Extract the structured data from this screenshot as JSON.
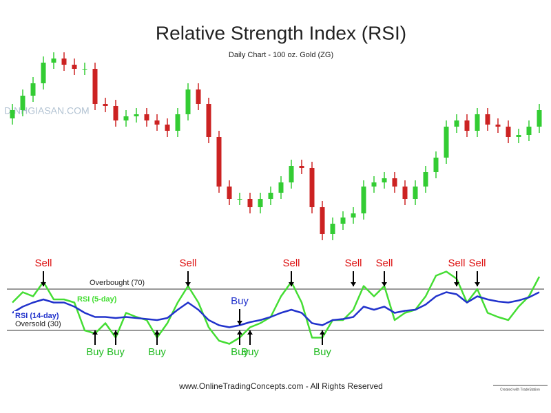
{
  "chart_data": [
    {
      "type": "candlestick",
      "title": "Relative Strength Index (RSI)",
      "subtitle": "Daily Chart - 100 oz. Gold (ZG)",
      "watermark": "DINHGIASAN.COM",
      "up_color": "#33cc33",
      "down_color": "#cc2222",
      "ylim": [
        0,
        105
      ],
      "open": [
        66,
        70,
        77,
        83,
        93,
        95,
        92,
        90,
        90,
        73,
        72,
        65,
        67,
        68,
        65,
        63,
        60,
        68,
        80,
        73,
        57,
        33,
        27,
        27,
        23,
        27,
        30,
        35,
        43,
        42,
        23,
        10,
        15,
        18,
        20,
        33,
        35,
        37,
        33,
        27,
        33,
        40,
        47,
        62,
        65,
        60,
        68,
        63,
        62,
        57,
        58,
        62
      ],
      "high": [
        73,
        80,
        86,
        96,
        98,
        98,
        95,
        93,
        93,
        76,
        75,
        70,
        71,
        71,
        68,
        66,
        71,
        83,
        83,
        76,
        60,
        36,
        30,
        30,
        30,
        33,
        38,
        46,
        46,
        45,
        26,
        18,
        21,
        23,
        36,
        38,
        40,
        40,
        36,
        36,
        43,
        50,
        65,
        68,
        68,
        71,
        71,
        66,
        65,
        61,
        65,
        73
      ],
      "low": [
        63,
        67,
        74,
        80,
        90,
        89,
        87,
        87,
        70,
        69,
        62,
        62,
        64,
        62,
        60,
        57,
        57,
        65,
        70,
        54,
        30,
        24,
        24,
        20,
        20,
        24,
        27,
        32,
        39,
        20,
        7,
        7,
        12,
        15,
        17,
        30,
        32,
        30,
        24,
        24,
        30,
        37,
        44,
        59,
        57,
        57,
        60,
        59,
        54,
        54,
        55,
        59
      ],
      "close": [
        70,
        77,
        83,
        93,
        95,
        92,
        90,
        90,
        73,
        72,
        65,
        67,
        68,
        65,
        63,
        60,
        68,
        80,
        73,
        57,
        33,
        27,
        27,
        23,
        27,
        30,
        35,
        43,
        42,
        23,
        10,
        15,
        18,
        20,
        33,
        35,
        37,
        33,
        27,
        33,
        40,
        47,
        62,
        65,
        60,
        68,
        63,
        62,
        57,
        58,
        62,
        70
      ]
    },
    {
      "type": "line",
      "ylim": [
        0,
        100
      ],
      "reference_lines": [
        {
          "value": 70,
          "label": "Overbought (70)"
        },
        {
          "value": 30,
          "label": "Oversold (30)"
        }
      ],
      "series": [
        {
          "name": "RSI (5-day)",
          "color": "#44dd33",
          "values": [
            57,
            67,
            63,
            77,
            60,
            60,
            57,
            30,
            27,
            37,
            23,
            47,
            43,
            40,
            23,
            37,
            57,
            73,
            57,
            33,
            20,
            17,
            23,
            33,
            37,
            43,
            63,
            77,
            57,
            23,
            23,
            40,
            40,
            50,
            73,
            63,
            73,
            40,
            47,
            50,
            63,
            83,
            87,
            80,
            57,
            70,
            47,
            43,
            40,
            53,
            63,
            82
          ]
        },
        {
          "name": "RSI (14-day)",
          "color": "#2233cc",
          "values": [
            47,
            53,
            57,
            60,
            57,
            57,
            53,
            47,
            43,
            43,
            42,
            43,
            42,
            41,
            40,
            42,
            50,
            57,
            50,
            40,
            35,
            33,
            35,
            38,
            40,
            43,
            47,
            50,
            47,
            37,
            35,
            40,
            41,
            43,
            53,
            50,
            53,
            47,
            49,
            50,
            55,
            63,
            67,
            65,
            57,
            63,
            60,
            58,
            57,
            59,
            62,
            67
          ]
        }
      ],
      "annotations": [
        {
          "text": "Sell",
          "at": 3,
          "side": "above",
          "color": "#dd1111"
        },
        {
          "text": "Sell",
          "at": 17,
          "side": "above",
          "color": "#dd1111"
        },
        {
          "text": "Sell",
          "at": 27,
          "side": "above",
          "color": "#dd1111"
        },
        {
          "text": "Sell",
          "at": 33,
          "side": "above",
          "color": "#dd1111"
        },
        {
          "text": "Sell",
          "at": 36,
          "side": "above",
          "color": "#dd1111"
        },
        {
          "text": "Sell",
          "at": 43,
          "side": "above",
          "color": "#dd1111"
        },
        {
          "text": "Sell",
          "at": 45,
          "side": "above",
          "color": "#dd1111"
        },
        {
          "text": "Buy",
          "at": 8,
          "side": "below",
          "color": "#22bb22"
        },
        {
          "text": "Buy",
          "at": 10,
          "side": "below",
          "color": "#22bb22"
        },
        {
          "text": "Buy",
          "at": 14,
          "side": "below",
          "color": "#22bb22"
        },
        {
          "text": "Buy",
          "at": 22,
          "side": "below",
          "color": "#22bb22"
        },
        {
          "text": "Buy",
          "at": 23,
          "side": "below",
          "color": "#22bb22"
        },
        {
          "text": "Buy",
          "at": 30,
          "side": "below",
          "color": "#22bb22"
        },
        {
          "text": "Buy",
          "at": 22,
          "side": "mid",
          "color": "#2233cc"
        }
      ],
      "footer": "www.OnlineTradingConcepts.com - All Rights Reserved",
      "credit": "Created with TradeStation"
    }
  ]
}
